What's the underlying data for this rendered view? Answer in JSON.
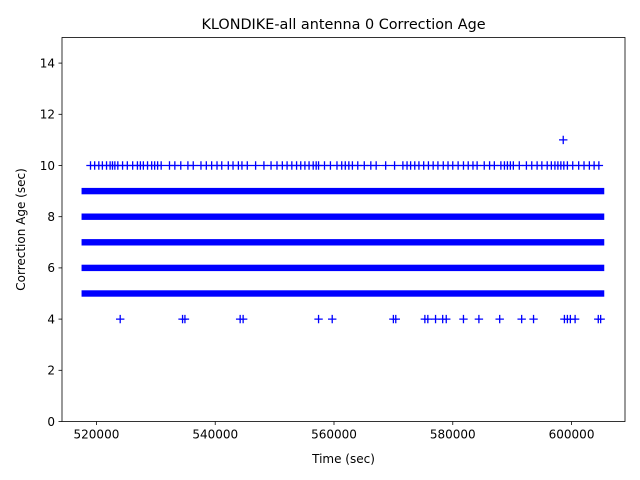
{
  "chart_data": {
    "type": "scatter",
    "title": "KLONDIKE-all antenna 0 Correction Age",
    "xlabel": "Time (sec)",
    "ylabel": "Correction Age (sec)",
    "xlim": [
      514200,
      609000
    ],
    "ylim": [
      0,
      15
    ],
    "xticks": [
      520000,
      540000,
      560000,
      580000,
      600000
    ],
    "xtick_labels": [
      "520000",
      "540000",
      "560000",
      "580000",
      "600000"
    ],
    "yticks": [
      0,
      2,
      4,
      6,
      8,
      10,
      12,
      14
    ],
    "ytick_labels": [
      "0",
      "2",
      "4",
      "6",
      "8",
      "10",
      "12",
      "14"
    ],
    "marker": "+",
    "color": "#0000ff",
    "dense_bands": [
      {
        "y": 5,
        "x_start": 518200,
        "x_end": 604800
      },
      {
        "y": 6,
        "x_start": 518200,
        "x_end": 604800
      },
      {
        "y": 7,
        "x_start": 518200,
        "x_end": 604800
      },
      {
        "y": 8,
        "x_start": 518200,
        "x_end": 604800
      },
      {
        "y": 9,
        "x_start": 518200,
        "x_end": 604800
      }
    ],
    "sparse_points": [
      {
        "y": 10,
        "x": [
          519000,
          519700,
          520400,
          521000,
          521700,
          522300,
          522700,
          523100,
          523600,
          524400,
          525200,
          526100,
          526900,
          527400,
          527900,
          528600,
          529300,
          529800,
          530300,
          530900,
          532300,
          533200,
          534200,
          535400,
          536300,
          537600,
          538500,
          539400,
          540300,
          541100,
          542200,
          543000,
          543900,
          544500,
          545400,
          546800,
          548200,
          549400,
          550400,
          551300,
          552100,
          552900,
          553700,
          554400,
          555100,
          555800,
          556500,
          557000,
          557400,
          558400,
          559400,
          560500,
          561300,
          561900,
          562500,
          563100,
          564000,
          565100,
          566200,
          567100,
          568700,
          570200,
          571600,
          572300,
          572900,
          573600,
          574300,
          575100,
          575900,
          576700,
          577500,
          578400,
          579200,
          580000,
          580900,
          581800,
          582600,
          583400,
          584100,
          585300,
          586200,
          587000,
          588100,
          588700,
          589200,
          589700,
          590200,
          591200,
          592400,
          593300,
          594200,
          595000,
          595900,
          596600,
          597200,
          597700,
          598200,
          598700,
          599300,
          600200,
          601200,
          602100,
          603000,
          603800,
          604600
        ]
      },
      {
        "y": 11,
        "x": [
          598600
        ]
      },
      {
        "y": 4,
        "x": [
          524000,
          534500,
          534900,
          544200,
          544700,
          557400,
          559700,
          570000,
          570400,
          575300,
          575800,
          577100,
          578300,
          578900,
          581800,
          584400,
          587900,
          591600,
          593600,
          598800,
          599300,
          599800,
          600600,
          604500,
          604900
        ]
      }
    ]
  }
}
